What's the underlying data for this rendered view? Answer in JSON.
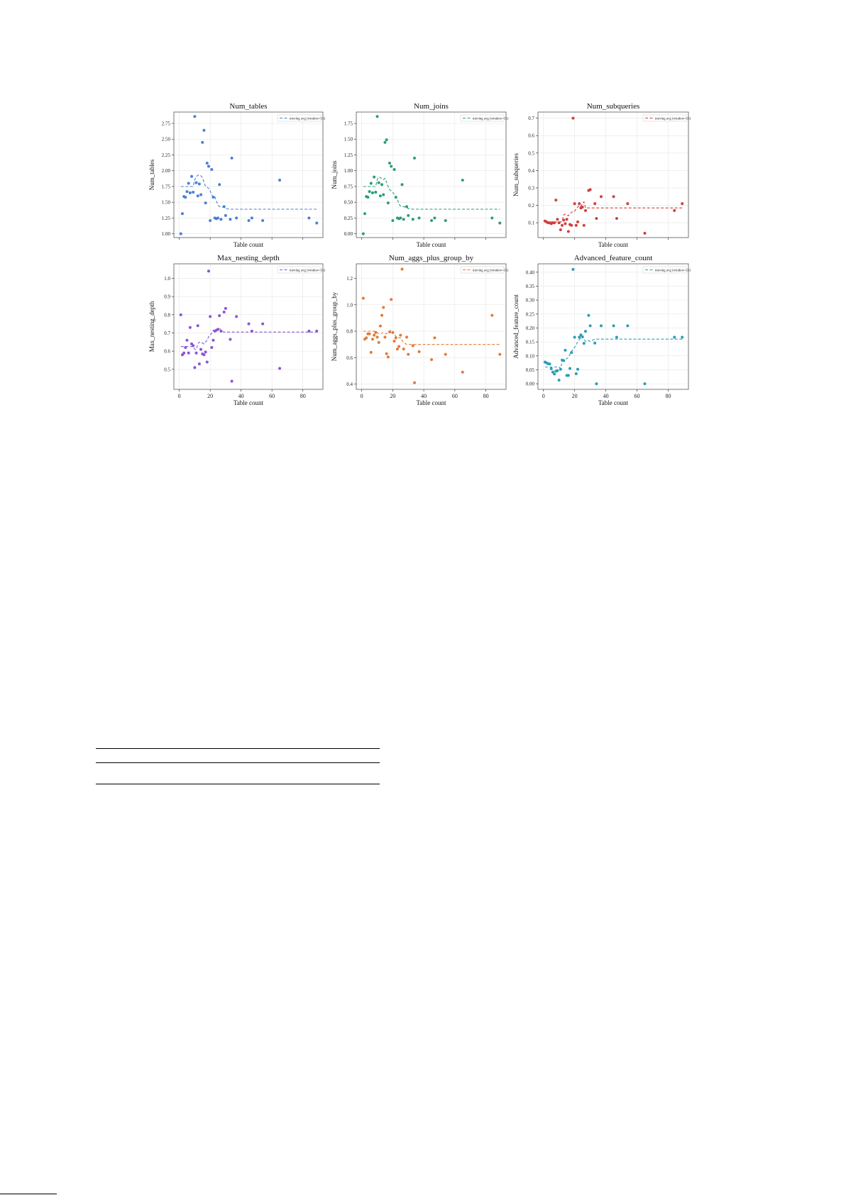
{
  "figure": {
    "legend_label": "moving avg (window=15)",
    "xlabel": "Table count"
  },
  "chart_data": [
    {
      "type": "scatter",
      "title": "Num_tables",
      "xlabel": "Table count",
      "ylabel": "Num_tables",
      "color": "#4a7fd6",
      "xlim": [
        -3.5,
        93
      ],
      "ylim": [
        0.94,
        2.93
      ],
      "yticks": [
        1.0,
        1.25,
        1.5,
        1.75,
        2.0,
        2.25,
        2.5,
        2.75
      ],
      "ytick_fmt": 2,
      "xticks": [
        0,
        20,
        40,
        60,
        80
      ],
      "show_xticklabels": false,
      "grid": true,
      "legend": "top-right",
      "x": [
        1,
        2,
        3,
        4,
        5,
        6,
        7,
        8,
        9,
        10,
        11,
        12,
        13,
        14,
        15,
        16,
        17,
        18,
        19,
        20,
        21,
        22,
        23,
        24,
        25,
        26,
        27,
        29,
        30,
        33,
        34,
        37,
        45,
        47,
        54,
        65,
        84,
        89
      ],
      "y": [
        1.0,
        1.32,
        1.59,
        1.58,
        1.67,
        1.8,
        1.65,
        1.91,
        1.66,
        2.86,
        1.81,
        1.6,
        1.79,
        1.62,
        2.45,
        2.64,
        1.49,
        2.12,
        2.07,
        1.21,
        2.02,
        1.58,
        1.25,
        1.24,
        1.25,
        1.78,
        1.23,
        1.43,
        1.29,
        1.23,
        2.2,
        1.25,
        1.21,
        1.25,
        1.21,
        1.85,
        1.25,
        1.17
      ],
      "moving_avg": [
        1.75,
        1.75,
        1.75,
        1.75,
        1.75,
        1.75,
        1.75,
        1.75,
        1.75,
        1.86,
        1.9,
        1.93,
        1.93,
        1.92,
        1.89,
        1.82,
        1.75,
        1.74,
        1.72,
        1.68,
        1.62,
        1.58,
        1.59,
        1.52,
        1.46,
        1.43,
        1.43,
        1.42,
        1.4,
        1.39,
        1.39,
        1.39,
        1.39,
        1.39,
        1.39,
        1.39,
        1.39,
        1.39
      ]
    },
    {
      "type": "scatter",
      "title": "Num_joins",
      "xlabel": "Table count",
      "ylabel": "Num_joins",
      "color": "#2a9d78",
      "xlim": [
        -3.5,
        93
      ],
      "ylim": [
        -0.06,
        1.93
      ],
      "yticks": [
        0.0,
        0.25,
        0.5,
        0.75,
        1.0,
        1.25,
        1.5,
        1.75
      ],
      "ytick_fmt": 2,
      "xticks": [
        0,
        20,
        40,
        60,
        80
      ],
      "show_xticklabels": false,
      "grid": true,
      "legend": "top-right",
      "x": [
        1,
        2,
        3,
        4,
        5,
        6,
        7,
        8,
        9,
        10,
        11,
        12,
        13,
        14,
        15,
        16,
        17,
        18,
        19,
        20,
        21,
        22,
        23,
        24,
        25,
        26,
        27,
        29,
        30,
        33,
        34,
        37,
        45,
        47,
        54,
        65,
        84,
        89
      ],
      "y": [
        0.0,
        0.32,
        0.59,
        0.58,
        0.67,
        0.8,
        0.65,
        0.9,
        0.66,
        1.86,
        0.81,
        0.6,
        0.78,
        0.62,
        1.45,
        1.49,
        0.49,
        1.12,
        1.07,
        0.21,
        1.02,
        0.58,
        0.25,
        0.24,
        0.25,
        0.78,
        0.23,
        0.43,
        0.29,
        0.23,
        1.2,
        0.25,
        0.21,
        0.25,
        0.21,
        0.85,
        0.25,
        0.17
      ],
      "moving_avg": [
        0.75,
        0.75,
        0.75,
        0.75,
        0.75,
        0.75,
        0.75,
        0.75,
        0.75,
        0.86,
        0.9,
        0.89,
        0.87,
        0.86,
        0.88,
        0.82,
        0.75,
        0.7,
        0.68,
        0.66,
        0.62,
        0.58,
        0.55,
        0.47,
        0.44,
        0.43,
        0.43,
        0.42,
        0.4,
        0.39,
        0.39,
        0.39,
        0.39,
        0.39,
        0.39,
        0.39,
        0.39,
        0.39
      ]
    },
    {
      "type": "scatter",
      "title": "Num_subqueries",
      "xlabel": "Table count",
      "ylabel": "Num_subqueries",
      "color": "#d13f3f",
      "xlim": [
        -3.5,
        93
      ],
      "ylim": [
        0.015,
        0.735
      ],
      "yticks": [
        0.1,
        0.2,
        0.3,
        0.4,
        0.5,
        0.6,
        0.7
      ],
      "ytick_fmt": 1,
      "xticks": [
        0,
        20,
        40,
        60,
        80
      ],
      "show_xticklabels": false,
      "grid": true,
      "legend": "top-right",
      "x": [
        1,
        2,
        3,
        4,
        5,
        6,
        7,
        8,
        9,
        10,
        11,
        12,
        13,
        14,
        15,
        16,
        17,
        18,
        19,
        20,
        21,
        22,
        23,
        24,
        25,
        26,
        27,
        29,
        30,
        33,
        34,
        37,
        45,
        47,
        54,
        65,
        84,
        89
      ],
      "y": [
        0.11,
        0.105,
        0.1,
        0.1,
        0.095,
        0.1,
        0.1,
        0.23,
        0.12,
        0.1,
        0.06,
        0.085,
        0.115,
        0.095,
        0.12,
        0.05,
        0.09,
        0.085,
        0.7,
        0.21,
        0.085,
        0.105,
        0.21,
        0.185,
        0.19,
        0.085,
        0.17,
        0.285,
        0.29,
        0.21,
        0.125,
        0.25,
        0.25,
        0.125,
        0.21,
        0.04,
        0.17,
        0.21
      ],
      "moving_avg": [
        0.105,
        0.105,
        0.105,
        0.105,
        0.105,
        0.105,
        0.105,
        0.105,
        0.105,
        0.105,
        0.105,
        0.11,
        0.145,
        0.15,
        0.145,
        0.14,
        0.15,
        0.16,
        0.165,
        0.165,
        0.18,
        0.19,
        0.2,
        0.195,
        0.21,
        0.22,
        0.185,
        0.185,
        0.185,
        0.185,
        0.185,
        0.185,
        0.185,
        0.185,
        0.185,
        0.185,
        0.185,
        0.185
      ]
    },
    {
      "type": "scatter",
      "title": "Max_nesting_depth",
      "xlabel": "Table count",
      "ylabel": "Max_nesting_depth",
      "color": "#8a54d6",
      "xlim": [
        -3.5,
        93
      ],
      "ylim": [
        0.39,
        1.08
      ],
      "yticks": [
        0.5,
        0.6,
        0.7,
        0.8,
        0.9,
        1.0
      ],
      "ytick_fmt": 1,
      "xticks": [
        0,
        20,
        40,
        60,
        80
      ],
      "show_xticklabels": true,
      "grid": true,
      "legend": "top-right",
      "x": [
        1,
        2,
        3,
        4,
        5,
        6,
        7,
        8,
        9,
        10,
        11,
        12,
        13,
        14,
        15,
        16,
        17,
        18,
        19,
        20,
        21,
        22,
        23,
        24,
        25,
        26,
        27,
        29,
        30,
        33,
        34,
        37,
        45,
        47,
        54,
        65,
        84,
        89
      ],
      "y": [
        0.8,
        0.58,
        0.59,
        0.62,
        0.66,
        0.59,
        0.73,
        0.64,
        0.63,
        0.51,
        0.59,
        0.74,
        0.53,
        0.61,
        0.585,
        0.58,
        0.595,
        0.54,
        1.04,
        0.79,
        0.62,
        0.66,
        0.71,
        0.715,
        0.72,
        0.795,
        0.71,
        0.815,
        0.835,
        0.665,
        0.435,
        0.79,
        0.75,
        0.71,
        0.75,
        0.505,
        0.71,
        0.71
      ],
      "moving_avg": [
        0.625,
        0.625,
        0.625,
        0.625,
        0.625,
        0.625,
        0.625,
        0.625,
        0.625,
        0.61,
        0.61,
        0.64,
        0.65,
        0.645,
        0.645,
        0.64,
        0.65,
        0.66,
        0.68,
        0.685,
        0.7,
        0.715,
        0.715,
        0.715,
        0.72,
        0.73,
        0.71,
        0.705,
        0.705,
        0.705,
        0.705,
        0.705,
        0.705,
        0.705,
        0.705,
        0.705,
        0.705,
        0.705
      ]
    },
    {
      "type": "scatter",
      "title": "Num_aggs_plus_group_by",
      "xlabel": "Table count",
      "ylabel": "Num_aggs_plus_group_by",
      "color": "#e07a3a",
      "xlim": [
        -3.5,
        93
      ],
      "ylim": [
        0.36,
        1.31
      ],
      "yticks": [
        0.4,
        0.6,
        0.8,
        1.0,
        1.2
      ],
      "ytick_fmt": 1,
      "xticks": [
        0,
        20,
        40,
        60,
        80
      ],
      "show_xticklabels": true,
      "grid": true,
      "legend": "top-right",
      "x": [
        1,
        2,
        3,
        4,
        5,
        6,
        7,
        8,
        9,
        10,
        11,
        12,
        13,
        14,
        15,
        16,
        17,
        18,
        19,
        20,
        21,
        22,
        23,
        24,
        25,
        26,
        27,
        29,
        30,
        33,
        34,
        37,
        45,
        47,
        54,
        65,
        84,
        89
      ],
      "y": [
        1.05,
        0.74,
        0.75,
        0.78,
        0.78,
        0.64,
        0.74,
        0.77,
        0.79,
        0.755,
        0.715,
        0.84,
        0.92,
        0.98,
        0.755,
        0.63,
        0.605,
        0.795,
        1.04,
        0.79,
        0.725,
        0.75,
        0.665,
        0.685,
        0.77,
        1.27,
        0.665,
        0.755,
        0.625,
        0.69,
        0.41,
        0.645,
        0.585,
        0.75,
        0.625,
        0.49,
        0.92,
        0.625
      ],
      "moving_avg": [
        0.8,
        0.8,
        0.8,
        0.8,
        0.8,
        0.8,
        0.8,
        0.8,
        0.8,
        0.79,
        0.78,
        0.78,
        0.785,
        0.79,
        0.785,
        0.78,
        0.79,
        0.8,
        0.81,
        0.79,
        0.78,
        0.76,
        0.755,
        0.75,
        0.75,
        0.73,
        0.715,
        0.7,
        0.7,
        0.7,
        0.7,
        0.7,
        0.7,
        0.7,
        0.7,
        0.7,
        0.7,
        0.7
      ]
    },
    {
      "type": "scatter",
      "title": "Advanced_feature_count",
      "xlabel": "Table count",
      "ylabel": "Advanced_feature_count",
      "color": "#2a9db8",
      "xlim": [
        -3.5,
        93
      ],
      "ylim": [
        -0.02,
        0.43
      ],
      "yticks": [
        0.0,
        0.05,
        0.1,
        0.15,
        0.2,
        0.25,
        0.3,
        0.35,
        0.4
      ],
      "ytick_fmt": 2,
      "xticks": [
        0,
        20,
        40,
        60,
        80
      ],
      "show_xticklabels": true,
      "grid": true,
      "legend": "top-right",
      "x": [
        1,
        2,
        3,
        4,
        5,
        6,
        7,
        8,
        9,
        10,
        11,
        12,
        13,
        14,
        15,
        16,
        17,
        18,
        19,
        20,
        21,
        22,
        23,
        24,
        25,
        26,
        27,
        29,
        30,
        33,
        34,
        37,
        45,
        47,
        54,
        65,
        84,
        89
      ],
      "y": [
        0.078,
        0.075,
        0.072,
        0.071,
        0.054,
        0.042,
        0.035,
        0.045,
        0.047,
        0.013,
        0.052,
        0.085,
        0.083,
        0.12,
        0.03,
        0.03,
        0.055,
        0.112,
        0.41,
        0.167,
        0.036,
        0.052,
        0.167,
        0.175,
        0.168,
        0.145,
        0.188,
        0.245,
        0.208,
        0.146,
        0.0,
        0.208,
        0.208,
        0.167,
        0.208,
        0.0,
        0.167,
        0.167
      ],
      "moving_avg": [
        0.06,
        0.06,
        0.06,
        0.06,
        0.06,
        0.06,
        0.06,
        0.06,
        0.06,
        0.06,
        0.055,
        0.08,
        0.085,
        0.088,
        0.09,
        0.095,
        0.105,
        0.115,
        0.125,
        0.13,
        0.14,
        0.15,
        0.158,
        0.165,
        0.17,
        0.16,
        0.152,
        0.155,
        0.152,
        0.16,
        0.16,
        0.16,
        0.16,
        0.16,
        0.16,
        0.16,
        0.16,
        0.16
      ]
    }
  ]
}
